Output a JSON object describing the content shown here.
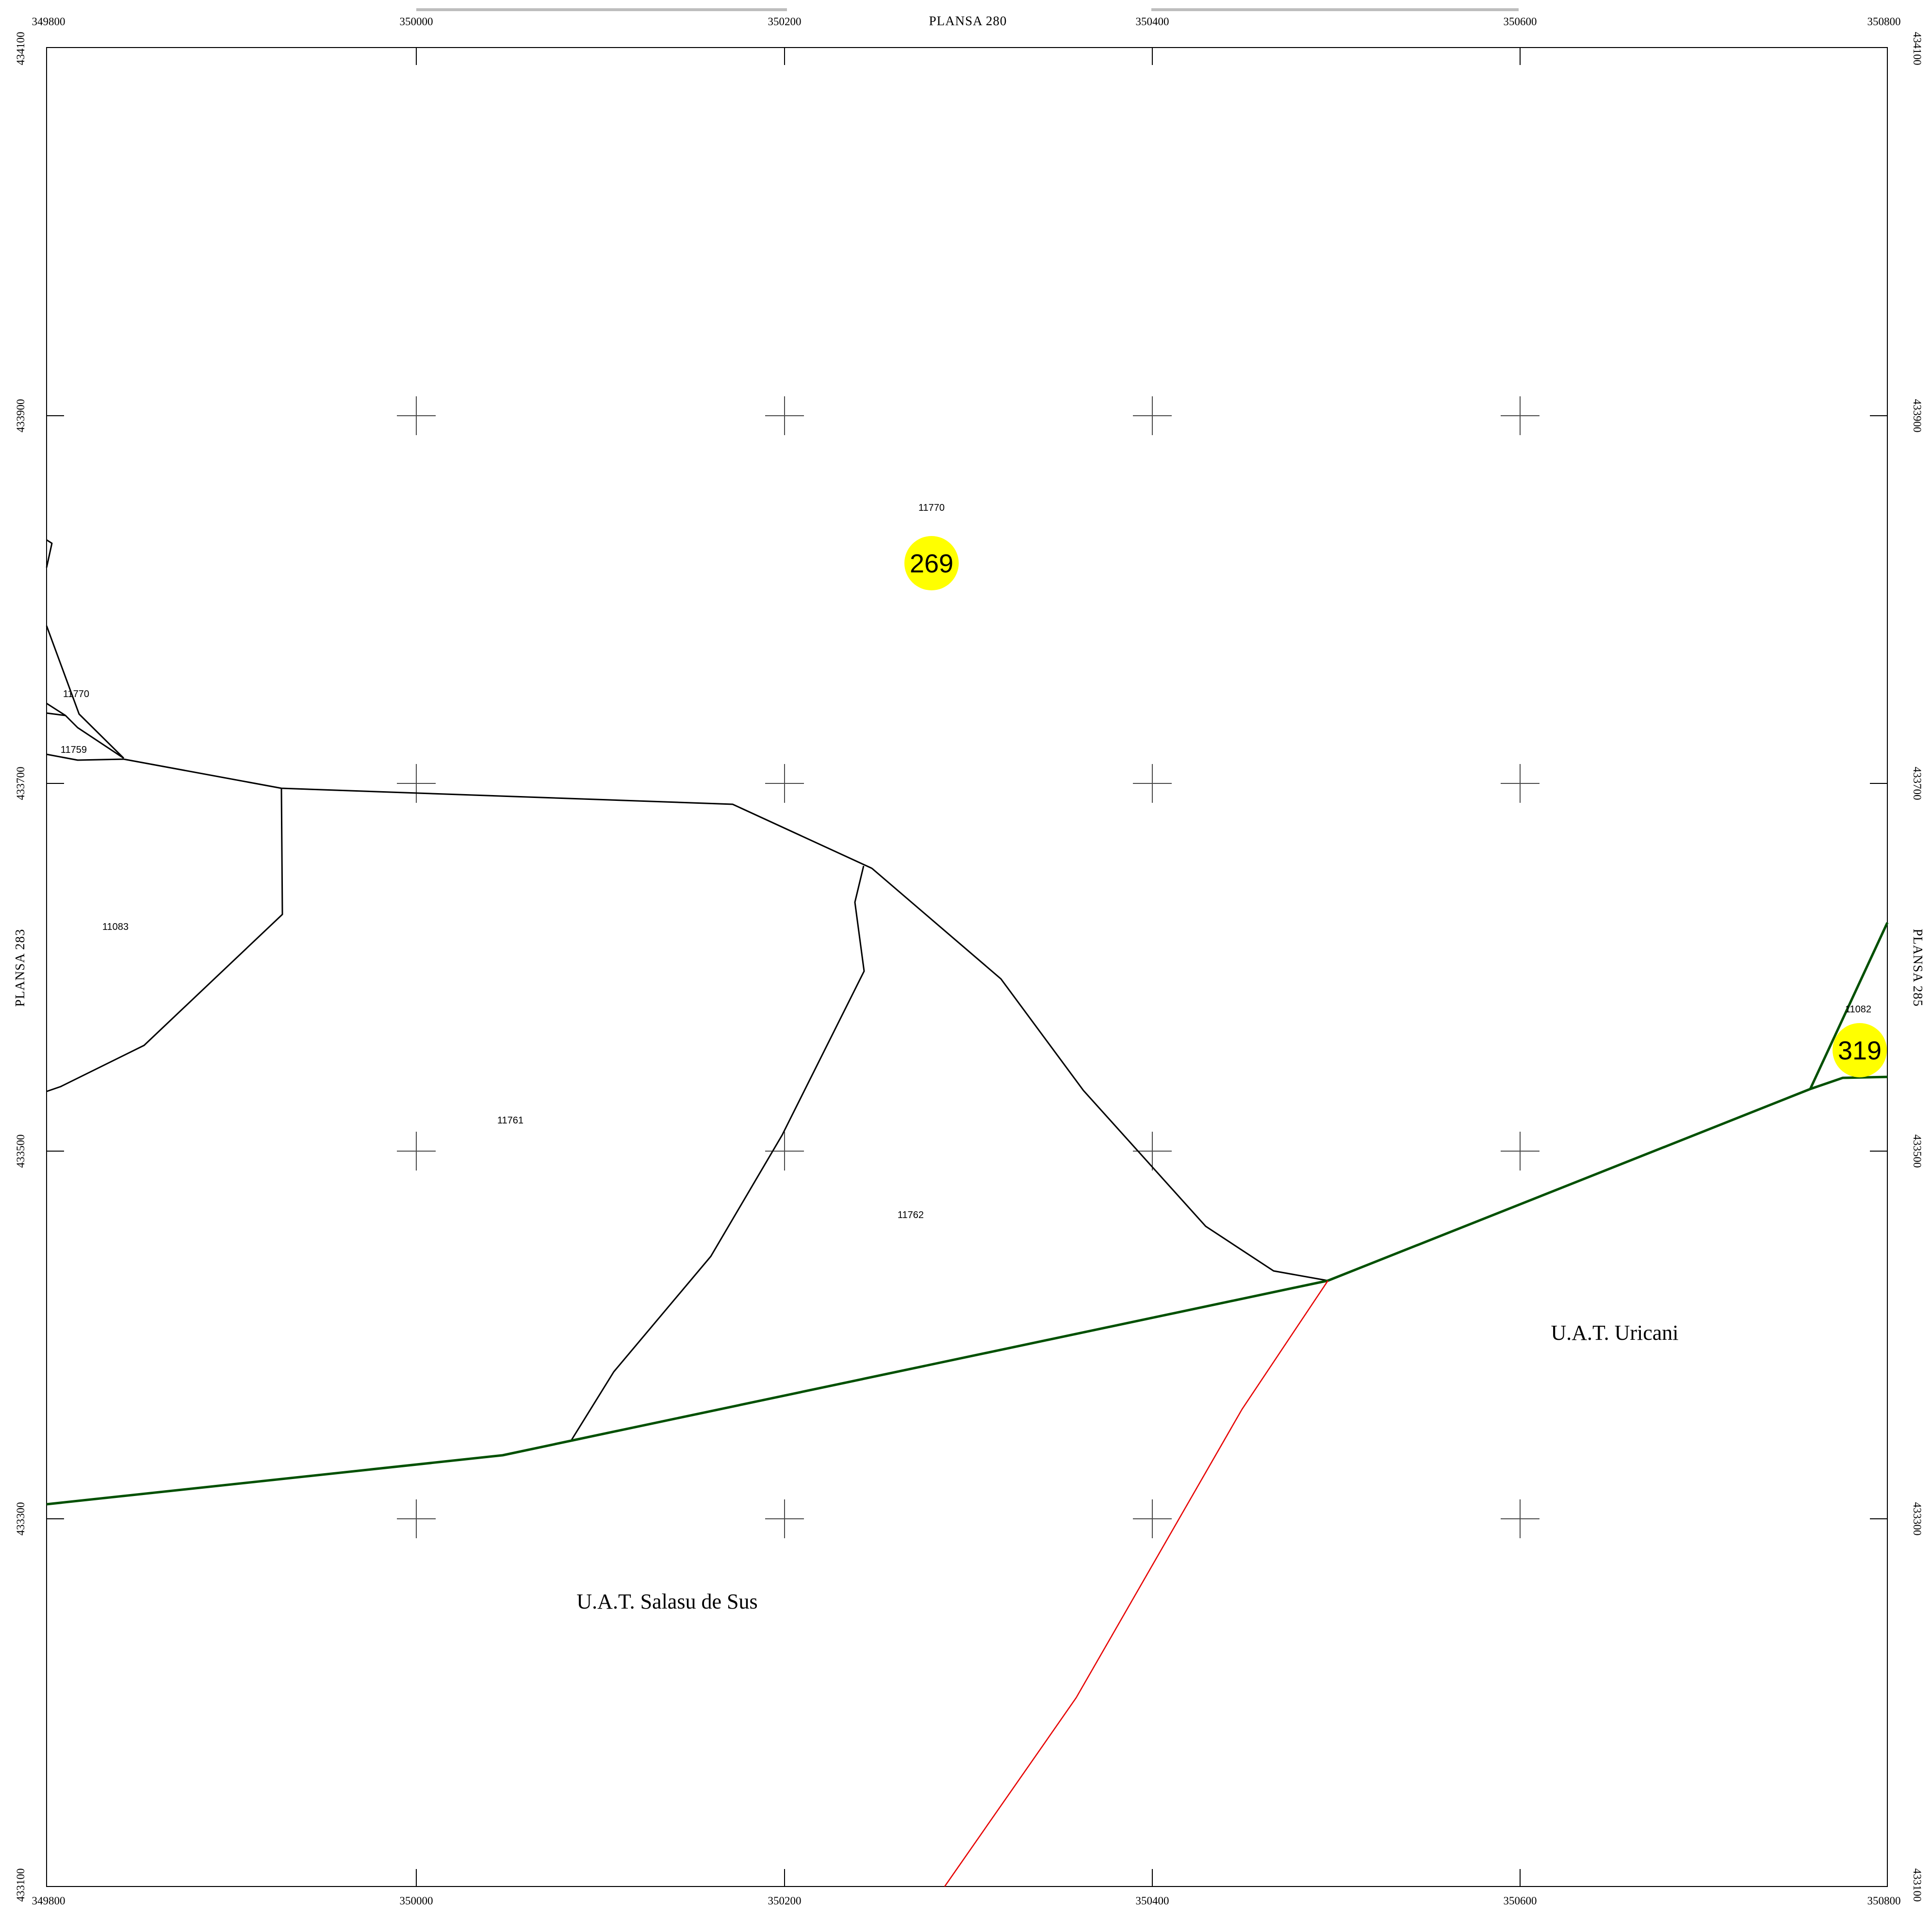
{
  "sheet_labels": {
    "top": "PLANSA  280",
    "left": "PLANSA  283",
    "right": "PLANSA  285"
  },
  "x_coords": [
    "349800",
    "350000",
    "350200",
    "350400",
    "350600",
    "350800"
  ],
  "y_coords": [
    "434100",
    "433900",
    "433700",
    "433500",
    "433300",
    "433100"
  ],
  "parcels": [
    {
      "id": "11770",
      "name": "parcel-11770-north"
    },
    {
      "id": "11770",
      "name": "parcel-11770-west"
    },
    {
      "id": "11759",
      "name": "parcel-11759"
    },
    {
      "id": "11083",
      "name": "parcel-11083"
    },
    {
      "id": "11761",
      "name": "parcel-11761"
    },
    {
      "id": "11762",
      "name": "parcel-11762"
    },
    {
      "id": "11082",
      "name": "parcel-11082"
    }
  ],
  "badges": [
    {
      "number": "269",
      "color": "#ffff00"
    },
    {
      "number": "319",
      "color": "#ffff00"
    }
  ],
  "uat_labels": {
    "uricani": "U.A.T. Uricani",
    "salasu": "U.A.T. Salasu de Sus"
  },
  "colors": {
    "parcel_line": "#000000",
    "uat_boundary": "#005000",
    "red_line": "#e60000",
    "badge": "#ffff00"
  }
}
